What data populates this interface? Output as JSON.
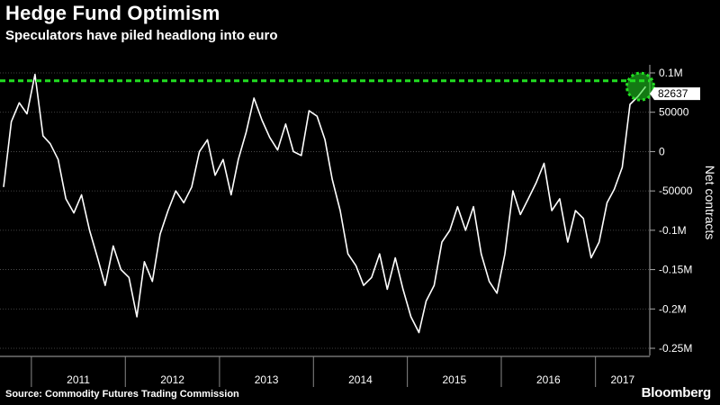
{
  "header": {
    "title": "Hedge Fund Optimism",
    "subtitle": "Speculators have piled headlong into euro"
  },
  "footer": {
    "source": "Source: Commodity Futures Trading Commission",
    "brand": "Bloomberg"
  },
  "colors": {
    "background": "#000000",
    "line": "#ffffff",
    "highlight": "#22dd22"
  },
  "chart_data": {
    "type": "line",
    "title": "Hedge Fund Optimism",
    "subtitle": "Speculators have piled headlong into euro",
    "ylabel": "Net contracts",
    "ylim": [
      -250000,
      100000
    ],
    "xlim": [
      "2010-09-01",
      "2017-07-31"
    ],
    "y_ticks": [
      {
        "value": 100000,
        "label": "0.1M"
      },
      {
        "value": 50000,
        "label": "50000"
      },
      {
        "value": 0,
        "label": "0"
      },
      {
        "value": -50000,
        "label": "-50000"
      },
      {
        "value": -100000,
        "label": "-0.1M"
      },
      {
        "value": -150000,
        "label": "-0.15M"
      },
      {
        "value": -200000,
        "label": "-0.2M"
      },
      {
        "value": -250000,
        "label": "-0.25M"
      }
    ],
    "x_ticks": [
      "2011",
      "2012",
      "2013",
      "2014",
      "2015",
      "2016",
      "2017"
    ],
    "grid": "horizontal dotted",
    "reference_line": {
      "value": 90000,
      "style": "dashed",
      "color": "#22dd22"
    },
    "last_value_label": "82637",
    "series": [
      {
        "x": [
          "2010-09",
          "2010-10",
          "2010-11",
          "2010-12",
          "2011-01",
          "2011-02",
          "2011-03",
          "2011-04",
          "2011-05",
          "2011-06",
          "2011-07",
          "2011-08",
          "2011-09",
          "2011-10",
          "2011-11",
          "2011-12",
          "2012-01",
          "2012-02",
          "2012-03",
          "2012-04",
          "2012-05",
          "2012-06",
          "2012-07",
          "2012-08",
          "2012-09",
          "2012-10",
          "2012-11",
          "2012-12",
          "2013-01",
          "2013-02",
          "2013-03",
          "2013-04",
          "2013-05",
          "2013-06",
          "2013-07",
          "2013-08",
          "2013-09",
          "2013-10",
          "2013-11",
          "2013-12",
          "2014-01",
          "2014-02",
          "2014-03",
          "2014-04",
          "2014-05",
          "2014-06",
          "2014-07",
          "2014-08",
          "2014-09",
          "2014-10",
          "2014-11",
          "2014-12",
          "2015-01",
          "2015-02",
          "2015-03",
          "2015-04",
          "2015-05",
          "2015-06",
          "2015-07",
          "2015-08",
          "2015-09",
          "2015-10",
          "2015-11",
          "2015-12",
          "2016-01",
          "2016-02",
          "2016-03",
          "2016-04",
          "2016-05",
          "2016-06",
          "2016-07",
          "2016-08",
          "2016-09",
          "2016-10",
          "2016-11",
          "2016-12",
          "2017-01",
          "2017-02",
          "2017-03",
          "2017-04",
          "2017-05",
          "2017-06",
          "2017-07"
        ],
        "y": [
          -45000,
          38000,
          62000,
          48000,
          98000,
          20000,
          10000,
          -10000,
          -60000,
          -78000,
          -55000,
          -100000,
          -135000,
          -170000,
          -120000,
          -150000,
          -160000,
          -210000,
          -140000,
          -165000,
          -105000,
          -75000,
          -50000,
          -65000,
          -45000,
          0,
          15000,
          -30000,
          -10000,
          -55000,
          -10000,
          25000,
          68000,
          40000,
          18000,
          2000,
          35000,
          0,
          -5000,
          52000,
          45000,
          15000,
          -35000,
          -75000,
          -130000,
          -145000,
          -170000,
          -160000,
          -130000,
          -175000,
          -135000,
          -175000,
          -210000,
          -230000,
          -190000,
          -170000,
          -115000,
          -100000,
          -70000,
          -100000,
          -70000,
          -130000,
          -165000,
          -180000,
          -130000,
          -50000,
          -80000,
          -60000,
          -40000,
          -15000,
          -75000,
          -60000,
          -115000,
          -75000,
          -85000,
          -135000,
          -115000,
          -65000,
          -48000,
          -20000,
          60000,
          70000,
          82637
        ]
      }
    ]
  }
}
